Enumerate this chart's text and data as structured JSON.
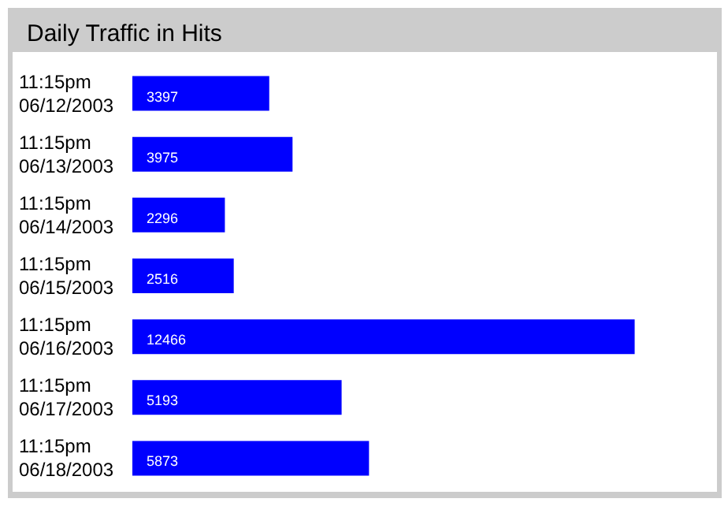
{
  "chart_data": {
    "type": "bar",
    "orientation": "horizontal",
    "title": "Daily Traffic in Hits",
    "categories": [
      "11:15pm\n06/12/2003",
      "11:15pm\n06/13/2003",
      "11:15pm\n06/14/2003",
      "11:15pm\n06/15/2003",
      "11:15pm\n06/16/2003",
      "11:15pm\n06/17/2003",
      "11:15pm\n06/18/2003"
    ],
    "values": [
      3397,
      3975,
      2296,
      2516,
      12466,
      5193,
      5873
    ],
    "color": "#0000ff",
    "data_labels": true
  }
}
